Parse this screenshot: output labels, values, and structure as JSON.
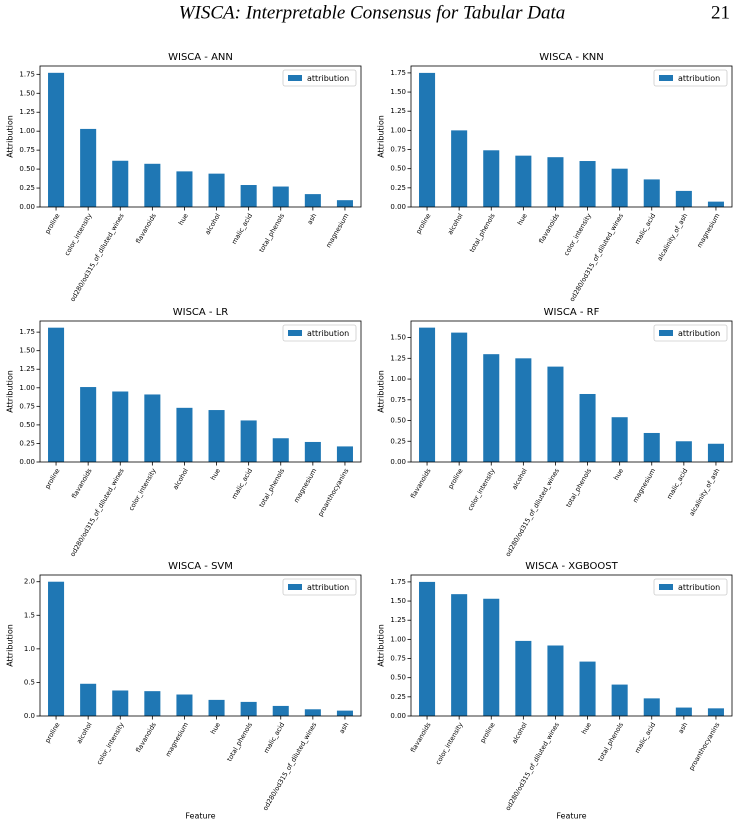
{
  "header": {
    "title": "WISCA: Interpretable Consensus for Tabular Data",
    "page": "21"
  },
  "chart_data": [
    {
      "type": "bar",
      "title": "WISCA - ANN",
      "ylabel": "Attribution",
      "categories": [
        "proline",
        "color_intensity",
        "od280/od315_of_diluted_wines",
        "flavanoids",
        "hue",
        "alcohol",
        "malic_acid",
        "total_phenols",
        "ash",
        "magnesium"
      ],
      "series": [
        {
          "name": "attribution",
          "color": "#1f77b4",
          "values": [
            1.77,
            1.03,
            0.61,
            0.57,
            0.47,
            0.44,
            0.29,
            0.27,
            0.17,
            0.09
          ]
        }
      ],
      "ylim": [
        0,
        1.86
      ],
      "yticks": [
        {
          "value": 0,
          "label": "0.00"
        },
        0.25,
        {
          "value": 0.5,
          "label": "0.50"
        },
        0.75,
        {
          "value": 1,
          "label": "1.00"
        },
        1.25,
        {
          "value": 1.5,
          "label": "1.50"
        },
        1.75
      ],
      "legend": "upper right"
    },
    {
      "type": "bar",
      "title": "WISCA - KNN",
      "ylabel": "Attribution",
      "categories": [
        "proline",
        "alcohol",
        "total_phenols",
        "hue",
        "flavanoids",
        "color_intensity",
        "od280/od315_of_diluted_wines",
        "malic_acid",
        "alcalinity_of_ash",
        "magnesium"
      ],
      "series": [
        {
          "name": "attribution",
          "color": "#1f77b4",
          "values": [
            1.75,
            1.0,
            0.74,
            0.67,
            0.65,
            0.6,
            0.5,
            0.36,
            0.21,
            0.07
          ]
        }
      ],
      "ylim": [
        0,
        1.84
      ],
      "yticks": [
        {
          "value": 0,
          "label": "0.00"
        },
        0.25,
        {
          "value": 0.5,
          "label": "0.50"
        },
        0.75,
        {
          "value": 1,
          "label": "1.00"
        },
        1.25,
        {
          "value": 1.5,
          "label": "1.50"
        },
        1.75
      ],
      "legend": "upper right"
    },
    {
      "type": "bar",
      "title": "WISCA - LR",
      "ylabel": "Attribution",
      "categories": [
        "proline",
        "flavanoids",
        "od280/od315_of_diluted_wines",
        "color_intensity",
        "alcohol",
        "hue",
        "malic_acid",
        "total_phenols",
        "magnesium",
        "proanthocyanins"
      ],
      "series": [
        {
          "name": "attribution",
          "color": "#1f77b4",
          "values": [
            1.81,
            1.01,
            0.95,
            0.91,
            0.73,
            0.7,
            0.56,
            0.32,
            0.27,
            0.21
          ]
        }
      ],
      "ylim": [
        0,
        1.9
      ],
      "yticks": [
        {
          "value": 0,
          "label": "0.00"
        },
        0.25,
        {
          "value": 0.5,
          "label": "0.50"
        },
        0.75,
        {
          "value": 1,
          "label": "1.00"
        },
        1.25,
        {
          "value": 1.5,
          "label": "1.50"
        },
        1.75
      ],
      "legend": "upper right"
    },
    {
      "type": "bar",
      "title": "WISCA - RF",
      "ylabel": "Attribution",
      "categories": [
        "flavanoids",
        "proline",
        "color_intensity",
        "alcohol",
        "od280/od315_of_diluted_wines",
        "total_phenols",
        "hue",
        "magnesium",
        "malic_acid",
        "alcalinity_of_ash"
      ],
      "series": [
        {
          "name": "attribution",
          "color": "#1f77b4",
          "values": [
            1.62,
            1.56,
            1.3,
            1.25,
            1.15,
            0.82,
            0.54,
            0.35,
            0.25,
            0.22
          ]
        }
      ],
      "ylim": [
        0,
        1.7
      ],
      "yticks": [
        {
          "value": 0,
          "label": "0.00"
        },
        0.25,
        {
          "value": 0.5,
          "label": "0.50"
        },
        0.75,
        {
          "value": 1,
          "label": "1.00"
        },
        1.25,
        {
          "value": 1.5,
          "label": "1.50"
        }
      ],
      "legend": "upper right"
    },
    {
      "type": "bar",
      "title": "WISCA - SVM",
      "ylabel": "Attribution",
      "xlabel": "Feature",
      "categories": [
        "proline",
        "alcohol",
        "color_intensity",
        "flavanoids",
        "magnesium",
        "hue",
        "total_phenols",
        "malic_acid",
        "od280/od315_of_diluted_wines",
        "ash"
      ],
      "series": [
        {
          "name": "attribution",
          "color": "#1f77b4",
          "values": [
            2.0,
            0.48,
            0.38,
            0.37,
            0.32,
            0.24,
            0.21,
            0.15,
            0.1,
            0.08
          ]
        }
      ],
      "ylim": [
        0,
        2.1
      ],
      "yticks": [
        {
          "value": 0,
          "label": "0.0"
        },
        0.5,
        {
          "value": 1,
          "label": "1.0"
        },
        1.5,
        {
          "value": 2,
          "label": "2.0"
        }
      ],
      "legend": "upper right"
    },
    {
      "type": "bar",
      "title": "WISCA - XGBOOST",
      "ylabel": "Attribution",
      "xlabel": "Feature",
      "categories": [
        "flavanoids",
        "color_intensity",
        "proline",
        "alcohol",
        "od280/od315_of_diluted_wines",
        "hue",
        "total_phenols",
        "malic_acid",
        "ash",
        "proanthocyanins"
      ],
      "series": [
        {
          "name": "attribution",
          "color": "#1f77b4",
          "values": [
            1.75,
            1.59,
            1.53,
            0.98,
            0.92,
            0.71,
            0.41,
            0.23,
            0.11,
            0.1
          ]
        }
      ],
      "ylim": [
        0,
        1.84
      ],
      "yticks": [
        {
          "value": 0,
          "label": "0.00"
        },
        0.25,
        {
          "value": 0.5,
          "label": "0.50"
        },
        0.75,
        {
          "value": 1,
          "label": "1.00"
        },
        1.25,
        {
          "value": 1.5,
          "label": "1.50"
        },
        1.75
      ],
      "legend": "upper right"
    }
  ]
}
